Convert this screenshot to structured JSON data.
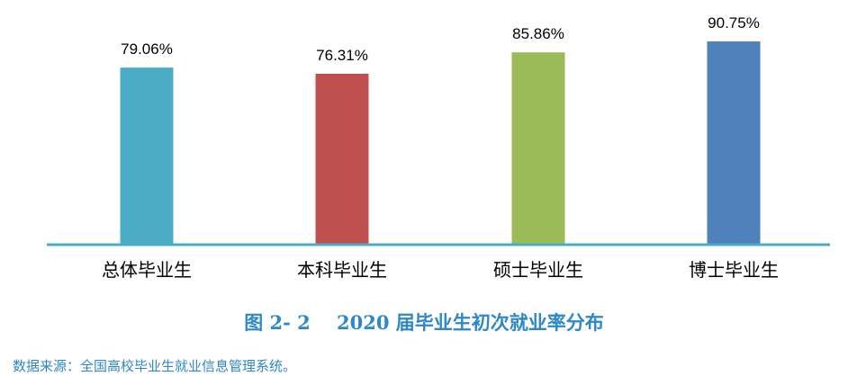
{
  "chart_data": {
    "type": "bar",
    "categories": [
      "总体毕业生",
      "本科毕业生",
      "硕士毕业生",
      "博士毕业生"
    ],
    "values": [
      79.06,
      76.31,
      85.86,
      90.75
    ],
    "value_labels": [
      "79.06%",
      "76.31%",
      "85.86%",
      "90.75%"
    ],
    "colors": [
      "#4bacc6",
      "#c0504d",
      "#9bbb59",
      "#4f81bd"
    ],
    "axis_color": "#4bacc6",
    "ylim": [
      0,
      100
    ],
    "grid": false,
    "legend": "none"
  },
  "caption": "图 2- 2    2020 届毕业生初次就业率分布",
  "source": "数据来源：全国高校毕业生就业信息管理系统。"
}
